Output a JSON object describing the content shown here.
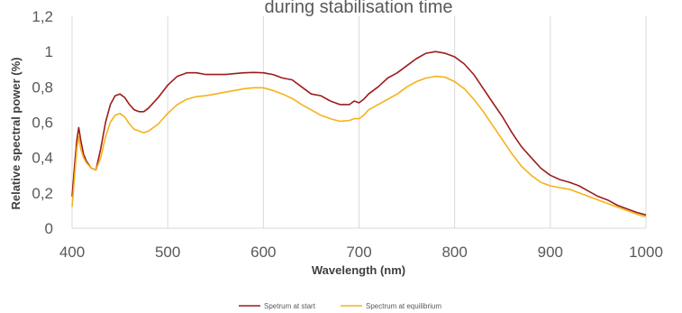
{
  "chart_data": {
    "type": "line",
    "title": "during stabilisation time",
    "xlabel": "Wavelength (nm)",
    "ylabel": "Relative spectral power (%)",
    "xlim": [
      400,
      1000
    ],
    "ylim": [
      0,
      1.2
    ],
    "x_ticks": [
      400,
      500,
      600,
      700,
      800,
      900,
      1000
    ],
    "y_ticks": [
      0,
      0.2,
      0.4,
      0.6,
      0.8,
      1.0,
      1.2
    ],
    "x_tick_labels": [
      "400",
      "500",
      "600",
      "700",
      "800",
      "900",
      "1000"
    ],
    "y_tick_labels": [
      "0",
      "0,2",
      "0,4",
      "0,6",
      "0,8",
      "1",
      "1,2"
    ],
    "grid": "vertical",
    "legend_position": "bottom",
    "series": [
      {
        "name": "Spetrum at start",
        "color": "#9b1c1c",
        "x": [
          400,
          403,
          405,
          407,
          409,
          412,
          415,
          420,
          425,
          430,
          435,
          440,
          445,
          450,
          455,
          460,
          465,
          470,
          475,
          480,
          490,
          500,
          510,
          520,
          530,
          540,
          550,
          560,
          570,
          580,
          590,
          600,
          610,
          620,
          630,
          640,
          650,
          660,
          670,
          680,
          690,
          695,
          700,
          705,
          710,
          720,
          730,
          740,
          750,
          760,
          770,
          780,
          790,
          800,
          810,
          820,
          830,
          840,
          850,
          860,
          870,
          880,
          890,
          900,
          910,
          920,
          930,
          940,
          950,
          960,
          970,
          980,
          990,
          1000
        ],
        "y": [
          0.18,
          0.38,
          0.5,
          0.57,
          0.5,
          0.42,
          0.38,
          0.34,
          0.33,
          0.45,
          0.6,
          0.7,
          0.75,
          0.76,
          0.74,
          0.7,
          0.67,
          0.66,
          0.66,
          0.68,
          0.74,
          0.81,
          0.86,
          0.88,
          0.88,
          0.87,
          0.87,
          0.87,
          0.875,
          0.88,
          0.882,
          0.88,
          0.87,
          0.85,
          0.84,
          0.8,
          0.76,
          0.75,
          0.72,
          0.7,
          0.7,
          0.72,
          0.71,
          0.73,
          0.76,
          0.8,
          0.85,
          0.88,
          0.92,
          0.96,
          0.99,
          1.0,
          0.99,
          0.97,
          0.93,
          0.87,
          0.79,
          0.71,
          0.63,
          0.54,
          0.46,
          0.4,
          0.34,
          0.3,
          0.275,
          0.26,
          0.24,
          0.21,
          0.18,
          0.16,
          0.13,
          0.11,
          0.09,
          0.075
        ]
      },
      {
        "name": "Spectrum at equilibrium",
        "color": "#f5b21a",
        "x": [
          400,
          403,
          405,
          407,
          409,
          412,
          415,
          420,
          425,
          430,
          435,
          440,
          445,
          450,
          455,
          460,
          465,
          470,
          475,
          480,
          490,
          500,
          510,
          520,
          530,
          540,
          550,
          560,
          570,
          580,
          590,
          600,
          610,
          620,
          630,
          640,
          650,
          660,
          670,
          680,
          690,
          695,
          700,
          705,
          710,
          720,
          730,
          740,
          750,
          760,
          770,
          780,
          790,
          800,
          810,
          820,
          830,
          840,
          850,
          860,
          870,
          880,
          890,
          900,
          910,
          920,
          930,
          940,
          950,
          960,
          970,
          980,
          990,
          1000
        ],
        "y": [
          0.12,
          0.32,
          0.45,
          0.52,
          0.45,
          0.4,
          0.37,
          0.34,
          0.33,
          0.4,
          0.52,
          0.6,
          0.64,
          0.65,
          0.63,
          0.59,
          0.56,
          0.55,
          0.54,
          0.55,
          0.59,
          0.65,
          0.7,
          0.73,
          0.745,
          0.75,
          0.76,
          0.77,
          0.78,
          0.79,
          0.795,
          0.795,
          0.78,
          0.76,
          0.735,
          0.7,
          0.67,
          0.64,
          0.62,
          0.605,
          0.61,
          0.62,
          0.62,
          0.64,
          0.67,
          0.7,
          0.73,
          0.76,
          0.8,
          0.83,
          0.85,
          0.86,
          0.855,
          0.83,
          0.79,
          0.73,
          0.66,
          0.58,
          0.5,
          0.42,
          0.35,
          0.3,
          0.26,
          0.24,
          0.23,
          0.22,
          0.2,
          0.18,
          0.16,
          0.14,
          0.12,
          0.1,
          0.08,
          0.065
        ]
      }
    ]
  }
}
